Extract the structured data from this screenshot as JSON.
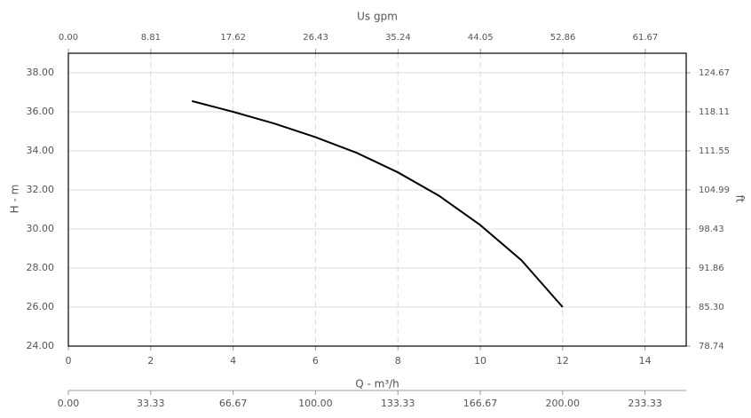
{
  "chart_data": {
    "type": "line",
    "xlabel": "Q - m³/h",
    "ylabel": "H - m",
    "x2label": "Us gpm",
    "y2label": "ft",
    "x": [
      3,
      4,
      5,
      6,
      7,
      8,
      9,
      10,
      11,
      12
    ],
    "series": [
      {
        "color": "#000000",
        "values": [
          36.55,
          36.0,
          35.4,
          34.7,
          33.9,
          32.9,
          31.7,
          30.2,
          28.4,
          26.0
        ]
      }
    ],
    "xlim": [
      0,
      15
    ],
    "xticks": [
      0,
      2,
      4,
      6,
      8,
      10,
      12,
      14
    ],
    "ylim": [
      24,
      39
    ],
    "yticks": [
      {
        "value": 24,
        "label": "24.00"
      },
      {
        "value": 26,
        "label": "26.00"
      },
      {
        "value": 28,
        "label": "28.00"
      },
      {
        "value": 30,
        "label": "30.00"
      },
      {
        "value": 32,
        "label": "32.00"
      },
      {
        "value": 34,
        "label": "34.00"
      },
      {
        "value": 36,
        "label": "36.00"
      },
      {
        "value": 38,
        "label": "38.00"
      }
    ],
    "y2lim": [
      78.74,
      127.95
    ],
    "y2ticks": [
      78.74,
      {
        "value": 85.3,
        "label": "85.30"
      },
      91.86,
      98.43,
      104.99,
      111.55,
      118.11,
      124.67
    ],
    "x2lim": [
      0,
      66.04
    ],
    "x2ticks": [
      {
        "value": 0,
        "label": "0.00"
      },
      8.81,
      17.62,
      26.43,
      35.24,
      44.05,
      52.86,
      61.67
    ],
    "x3lim": [
      0,
      250
    ],
    "x3ticks": [
      {
        "value": 0,
        "label": "0.00"
      },
      33.33,
      66.67,
      {
        "value": 100,
        "label": "100.00"
      },
      133.33,
      166.67,
      {
        "value": 200,
        "label": "200.00"
      },
      233.33
    ],
    "grid": true
  }
}
